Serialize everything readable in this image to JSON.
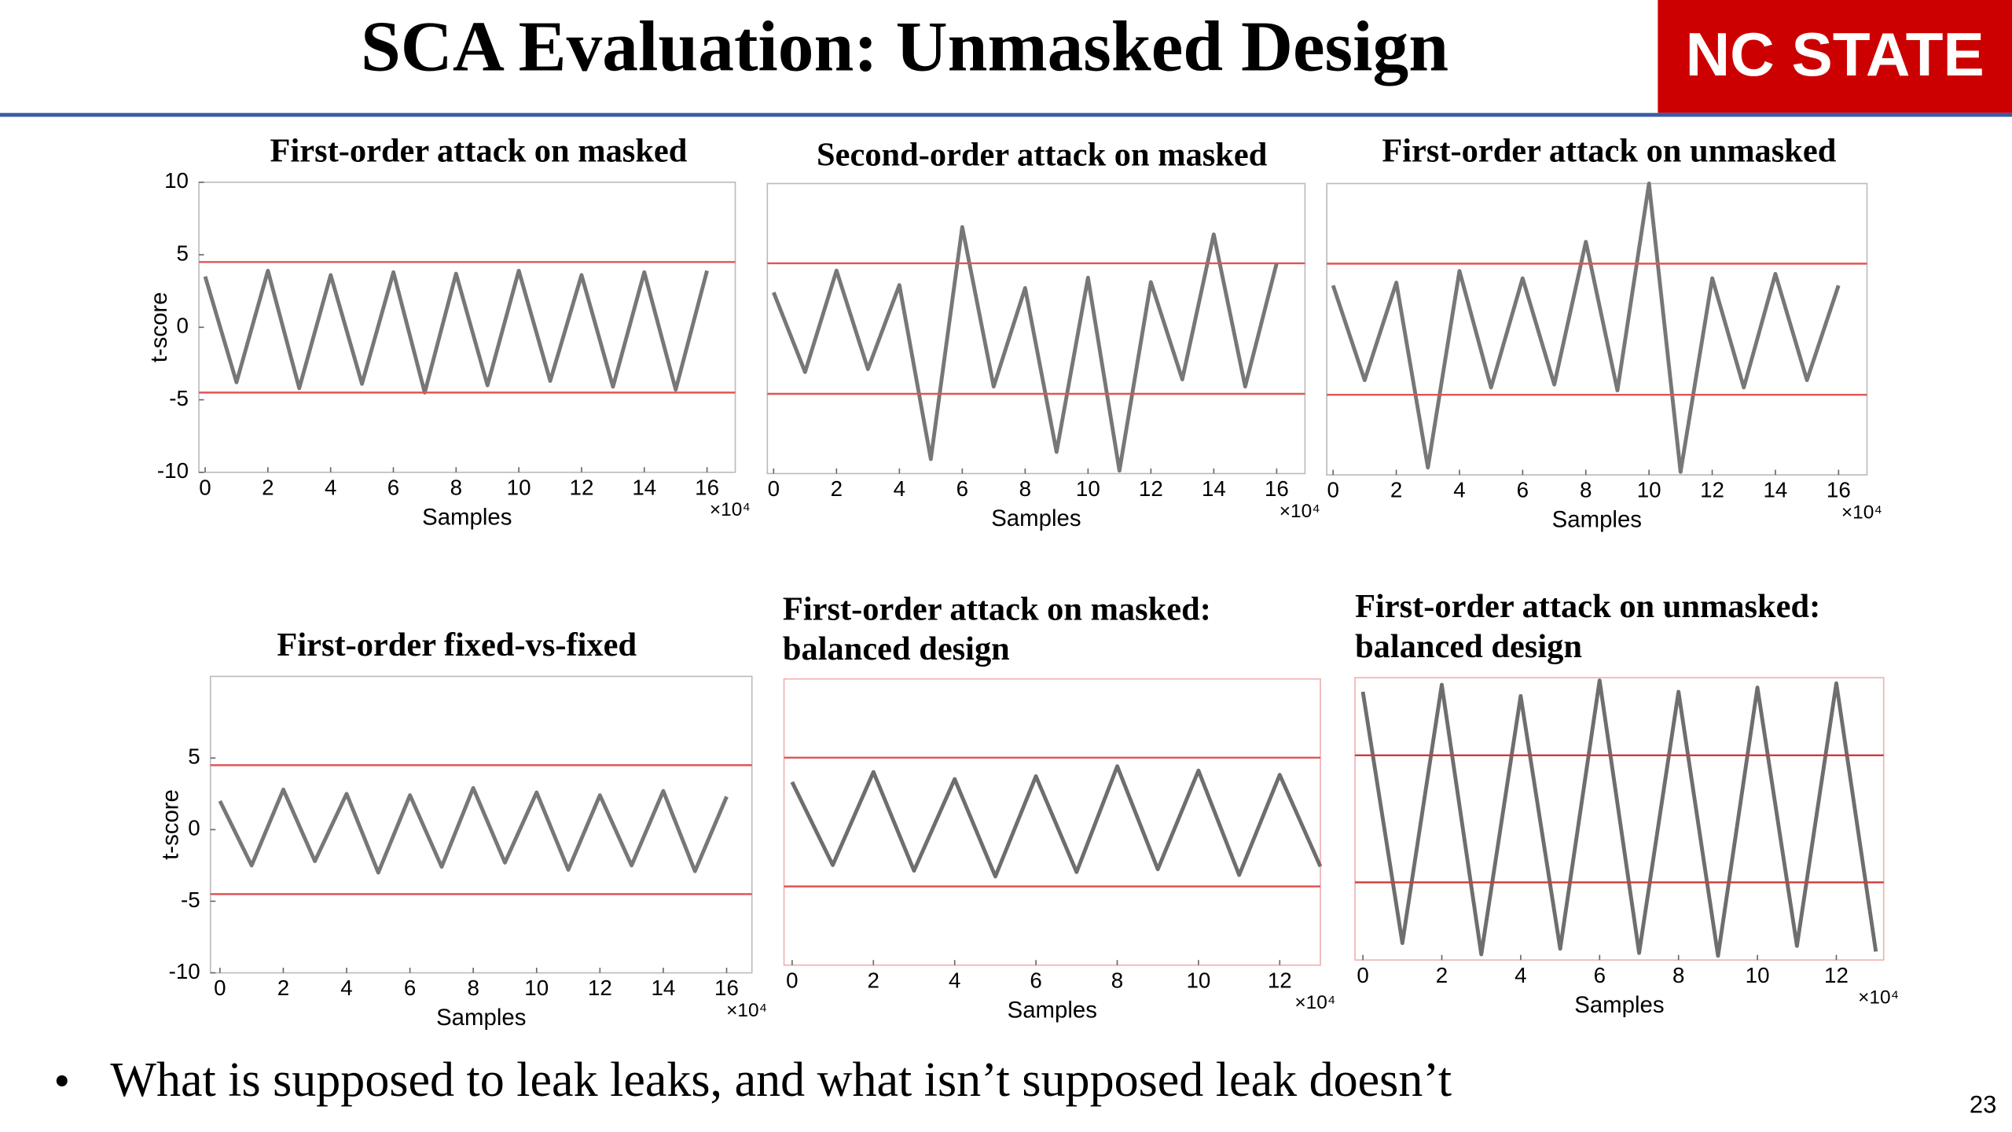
{
  "header": {
    "title": "SCA Evaluation: Unmasked Design",
    "logo": "NC STATE"
  },
  "chart_data": [
    {
      "type": "line",
      "title": "First-order attack on masked",
      "xlabel": "Samples",
      "ylabel": "t-score",
      "x_multiplier": "×10⁴",
      "xlim": [
        -0.2,
        16.9
      ],
      "ylim": [
        -10,
        10
      ],
      "xticks": [
        0,
        2,
        4,
        6,
        8,
        10,
        12,
        14,
        16
      ],
      "yticks": [
        -10,
        -5,
        0,
        5,
        10
      ],
      "thresholds": [
        4.5,
        -4.5
      ],
      "threshold_color": "#e05555",
      "color": "#777777",
      "x": [
        0,
        1,
        2,
        3,
        4,
        5,
        6,
        7,
        8,
        9,
        10,
        11,
        12,
        13,
        14,
        15,
        16
      ],
      "values": [
        3.5,
        -3.8,
        3.9,
        -4.2,
        3.6,
        -3.9,
        3.8,
        -4.5,
        3.7,
        -4.0,
        3.9,
        -3.7,
        3.6,
        -4.1,
        3.8,
        -4.3,
        3.9
      ]
    },
    {
      "type": "line",
      "title": "Second-order attack on masked",
      "xlabel": "Samples",
      "x_multiplier": "×10⁴",
      "xlim": [
        -0.2,
        16.9
      ],
      "ylim": [
        -10,
        10
      ],
      "xticks": [
        0,
        2,
        4,
        6,
        8,
        10,
        12,
        14,
        16
      ],
      "thresholds": [
        4.5,
        -4.5
      ],
      "threshold_color": "#e05555",
      "color": "#777777",
      "x": [
        0,
        1,
        2,
        3,
        4,
        5,
        6,
        7,
        8,
        9,
        10,
        11,
        12,
        13,
        14,
        15,
        16
      ],
      "values": [
        2.5,
        -3,
        4,
        -2.8,
        3,
        -9,
        7,
        -4,
        2.8,
        -8.5,
        3.5,
        -9.8,
        3.2,
        -3.5,
        6.5,
        -4,
        4.5
      ]
    },
    {
      "type": "line",
      "title": "First-order attack on unmasked",
      "xlabel": "Samples",
      "x_multiplier": "×10⁴",
      "xlim": [
        -0.2,
        16.9
      ],
      "ylim": [
        -10,
        10
      ],
      "xticks": [
        0,
        2,
        4,
        6,
        8,
        10,
        12,
        14,
        16
      ],
      "thresholds": [
        4.5,
        -4.5
      ],
      "threshold_color": "#e05555",
      "color": "#777777",
      "x": [
        0,
        1,
        2,
        3,
        4,
        5,
        6,
        7,
        8,
        9,
        10,
        11,
        12,
        13,
        14,
        15,
        16
      ],
      "values": [
        3,
        -3.5,
        3.2,
        -9.5,
        4,
        -4,
        3.5,
        -3.8,
        6,
        -4.2,
        10,
        -9.8,
        3.5,
        -4,
        3.8,
        -3.5,
        3
      ]
    },
    {
      "type": "line",
      "title": "First-order fixed-vs-fixed",
      "xlabel": "Samples",
      "ylabel": "t-score",
      "x_multiplier": "×10⁴",
      "xlim": [
        -0.3,
        16.8
      ],
      "ylim": [
        -10,
        10.7
      ],
      "xticks": [
        0,
        2,
        4,
        6,
        8,
        10,
        12,
        14,
        16
      ],
      "yticks": [
        -10,
        -5,
        0,
        5
      ],
      "thresholds": [
        4.5,
        -4.5
      ],
      "threshold_color": "#e05555",
      "color": "#777777",
      "x": [
        0,
        1,
        2,
        3,
        4,
        5,
        6,
        7,
        8,
        9,
        10,
        11,
        12,
        13,
        14,
        15,
        16
      ],
      "values": [
        2,
        -2.5,
        2.8,
        -2.2,
        2.5,
        -3,
        2.4,
        -2.6,
        2.9,
        -2.3,
        2.6,
        -2.8,
        2.4,
        -2.5,
        2.7,
        -2.9,
        2.3
      ]
    },
    {
      "type": "line",
      "title": [
        "First-order attack on masked:",
        "balanced design"
      ],
      "xlabel": "Samples",
      "x_multiplier": "×10⁴",
      "xlim": [
        -0.2,
        13
      ],
      "ylim": [
        -10,
        10
      ],
      "xticks": [
        0,
        2,
        4,
        6,
        8,
        10,
        12
      ],
      "thresholds": [
        4.5,
        -4.5
      ],
      "threshold_color": "#e05555",
      "color": "#6e6e6e",
      "x": [
        0,
        1,
        2,
        3,
        4,
        5,
        6,
        7,
        8,
        9,
        10,
        11,
        12,
        13
      ],
      "values": [
        2.8,
        -3,
        3.5,
        -3.4,
        3,
        -3.8,
        3.2,
        -3.5,
        3.9,
        -3.3,
        3.6,
        -3.7,
        3.3,
        -3.1
      ]
    },
    {
      "type": "line",
      "title": [
        "First-order attack on unmasked:",
        "balanced design"
      ],
      "xlabel": "Samples",
      "x_multiplier": "×10⁴",
      "xlim": [
        -0.2,
        13.2
      ],
      "ylim": [
        -10,
        10
      ],
      "xticks": [
        0,
        2,
        4,
        6,
        8,
        10,
        12
      ],
      "thresholds": [
        4.5,
        -4.5
      ],
      "threshold_color": "#d03a3a",
      "color": "#6e6e6e",
      "x": [
        0,
        1,
        2,
        3,
        4,
        5,
        6,
        7,
        8,
        9,
        10,
        11,
        12,
        13
      ],
      "values": [
        9,
        -8.8,
        9.5,
        -9.6,
        8.7,
        -9.2,
        9.8,
        -9.5,
        9,
        -9.7,
        9.3,
        -9,
        9.6,
        -9.4
      ]
    }
  ],
  "bullet": "What is supposed to leak leaks, and what isn’t supposed leak doesn’t",
  "page_number": "23"
}
